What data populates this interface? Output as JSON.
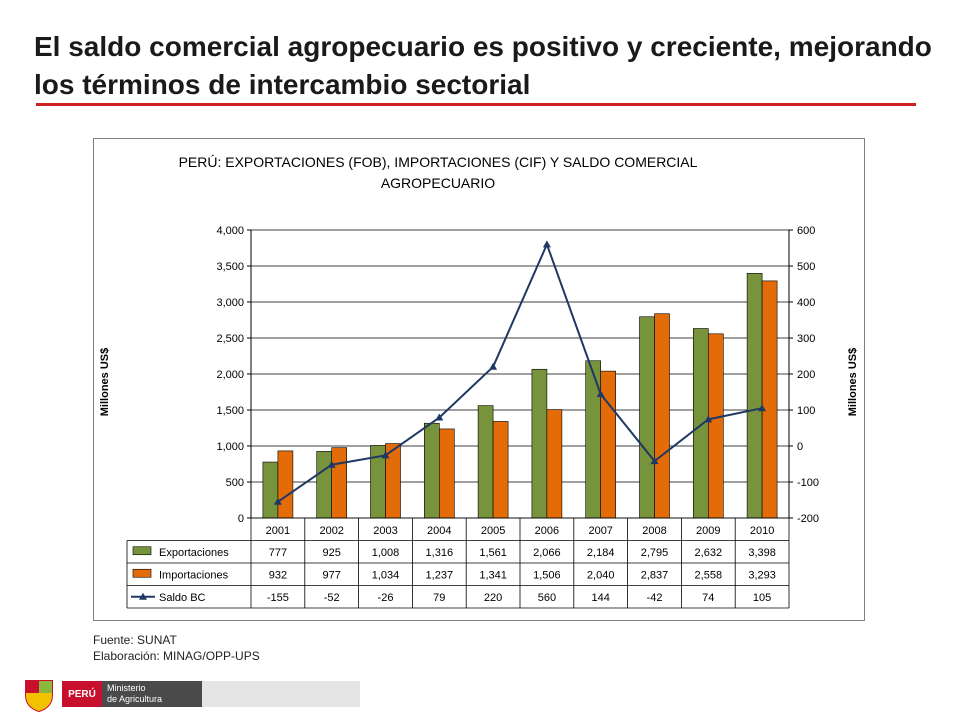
{
  "slide": {
    "title": "El saldo comercial agropecuario es positivo y creciente, mejorando los términos de intercambio sectorial"
  },
  "footer": {
    "source": "Fuente: SUNAT",
    "elaboration": "Elaboración: MINAG/OPP-UPS"
  },
  "logo": {
    "country": "PERÚ",
    "ministry_line1": "Ministerio",
    "ministry_line2": "de Agricultura"
  },
  "colors": {
    "title_rule": "#cc1f1f",
    "exportaciones": "#77933c",
    "importaciones": "#e36c09",
    "saldo": "#1f3864"
  },
  "chart_data": {
    "type": "bar",
    "title_line1": "PERÚ: EXPORTACIONES (FOB), IMPORTACIONES (CIF) Y SALDO COMERCIAL",
    "title_line2": "AGROPECUARIO",
    "ylabel": "Millones US$",
    "y2label": "Millones US$",
    "ylim": [
      0,
      4000
    ],
    "y_ticks": [
      "0",
      "500",
      "1,000",
      "1,500",
      "2,000",
      "2,500",
      "3,000",
      "3,500",
      "4,000"
    ],
    "y2lim": [
      -200,
      600
    ],
    "y2_ticks": [
      "-200",
      "-100",
      "0",
      "100",
      "200",
      "300",
      "400",
      "500",
      "600"
    ],
    "grid": true,
    "legend": "data table below chart",
    "categories": [
      "2001",
      "2002",
      "2003",
      "2004",
      "2005",
      "2006",
      "2007",
      "2008",
      "2009",
      "2010"
    ],
    "series": [
      {
        "name": "Exportaciones",
        "type": "bar",
        "axis": "left",
        "values": [
          777,
          925,
          1008,
          1316,
          1561,
          2066,
          2184,
          2795,
          2632,
          3398
        ],
        "labels": [
          "777",
          "925",
          "1,008",
          "1,316",
          "1,561",
          "2,066",
          "2,184",
          "2,795",
          "2,632",
          "3,398"
        ]
      },
      {
        "name": "Importaciones",
        "type": "bar",
        "axis": "left",
        "values": [
          932,
          977,
          1034,
          1237,
          1341,
          1506,
          2040,
          2837,
          2558,
          3293
        ],
        "labels": [
          "932",
          "977",
          "1,034",
          "1,237",
          "1,341",
          "1,506",
          "2,040",
          "2,837",
          "2,558",
          "3,293"
        ]
      },
      {
        "name": "Saldo BC",
        "type": "line",
        "axis": "right",
        "values": [
          -155,
          -52,
          -26,
          79,
          220,
          560,
          144,
          -42,
          74,
          105
        ],
        "labels": [
          "-155",
          "-52",
          "-26",
          "79",
          "220",
          "560",
          "144",
          "-42",
          "74",
          "105"
        ]
      }
    ]
  }
}
